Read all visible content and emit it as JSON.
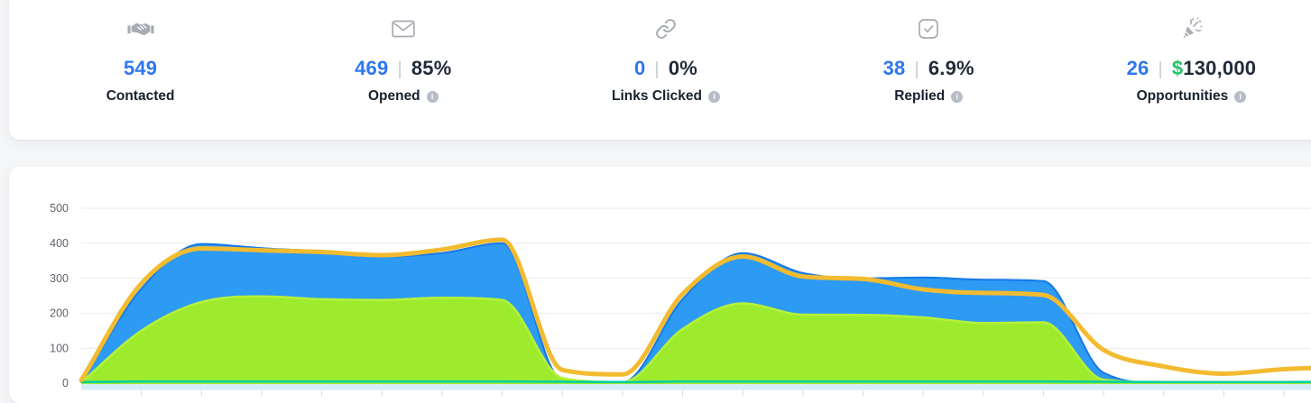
{
  "stats": {
    "separator": "|",
    "info_glyph": "i",
    "items": [
      {
        "icon": "handshake-icon",
        "value": "549",
        "label": "Contacted"
      },
      {
        "icon": "envelope-icon",
        "value": "469",
        "secondary": "85%",
        "label": "Opened",
        "has_info": true
      },
      {
        "icon": "link-icon",
        "value": "0",
        "secondary": "0%",
        "label": "Links Clicked",
        "has_info": true
      },
      {
        "icon": "checkbox-icon",
        "value": "38",
        "secondary": "6.9%",
        "label": "Replied",
        "has_info": true
      },
      {
        "icon": "party-popper-icon",
        "value": "26",
        "secondary_currency": "$",
        "secondary": "130,000",
        "label": "Opportunities",
        "has_info": true
      }
    ]
  },
  "colors": {
    "accent_blue": "#2e77f2",
    "dark_text": "#212b3b",
    "currency_green": "#22c169",
    "icon_gray": "#a7abb2"
  },
  "chart_data": {
    "type": "area",
    "title": "",
    "xlabel": "",
    "ylabel": "",
    "ylim": [
      0,
      500
    ],
    "yticks": [
      0,
      100,
      200,
      300,
      400,
      500
    ],
    "grid": true,
    "legend_position": "none",
    "x_axis": {
      "labels_visible": false,
      "points": 22,
      "tick_marks": 20
    },
    "x_index": [
      0,
      1,
      2,
      3,
      4,
      5,
      6,
      7,
      8,
      9,
      10,
      11,
      12,
      13,
      14,
      15,
      16,
      17,
      18,
      19,
      20,
      21
    ],
    "bottom_band_color": "#d8ecf7",
    "series": [
      {
        "name": "blue-area",
        "kind": "area",
        "color": "#2d9af3",
        "stroke": "#1578e8",
        "stroke_width": 2,
        "values": [
          2,
          270,
          398,
          386,
          377,
          362,
          372,
          400,
          8,
          2,
          240,
          372,
          315,
          300,
          302,
          296,
          292,
          30,
          0,
          0,
          0,
          0
        ]
      },
      {
        "name": "green-area",
        "kind": "area",
        "color": "#9eeb2e",
        "stroke": "#b5f23b",
        "stroke_width": 2.5,
        "values": [
          2,
          150,
          232,
          248,
          240,
          238,
          244,
          238,
          15,
          3,
          155,
          228,
          196,
          195,
          188,
          172,
          174,
          10,
          3,
          3,
          3,
          3
        ]
      },
      {
        "name": "teal-line",
        "kind": "line",
        "color": "#00cda4",
        "stroke_width": 2.5,
        "values": [
          3,
          5,
          5,
          5,
          5,
          5,
          5,
          5,
          4,
          3,
          5,
          5,
          5,
          5,
          5,
          5,
          5,
          4,
          3,
          3,
          3,
          4
        ]
      },
      {
        "name": "yellow-line",
        "kind": "line",
        "color": "#f2bb30",
        "stroke_width": 5,
        "values": [
          8,
          285,
          385,
          380,
          375,
          366,
          382,
          410,
          38,
          25,
          255,
          362,
          305,
          298,
          268,
          258,
          252,
          95,
          48,
          27,
          40,
          46
        ]
      }
    ]
  }
}
